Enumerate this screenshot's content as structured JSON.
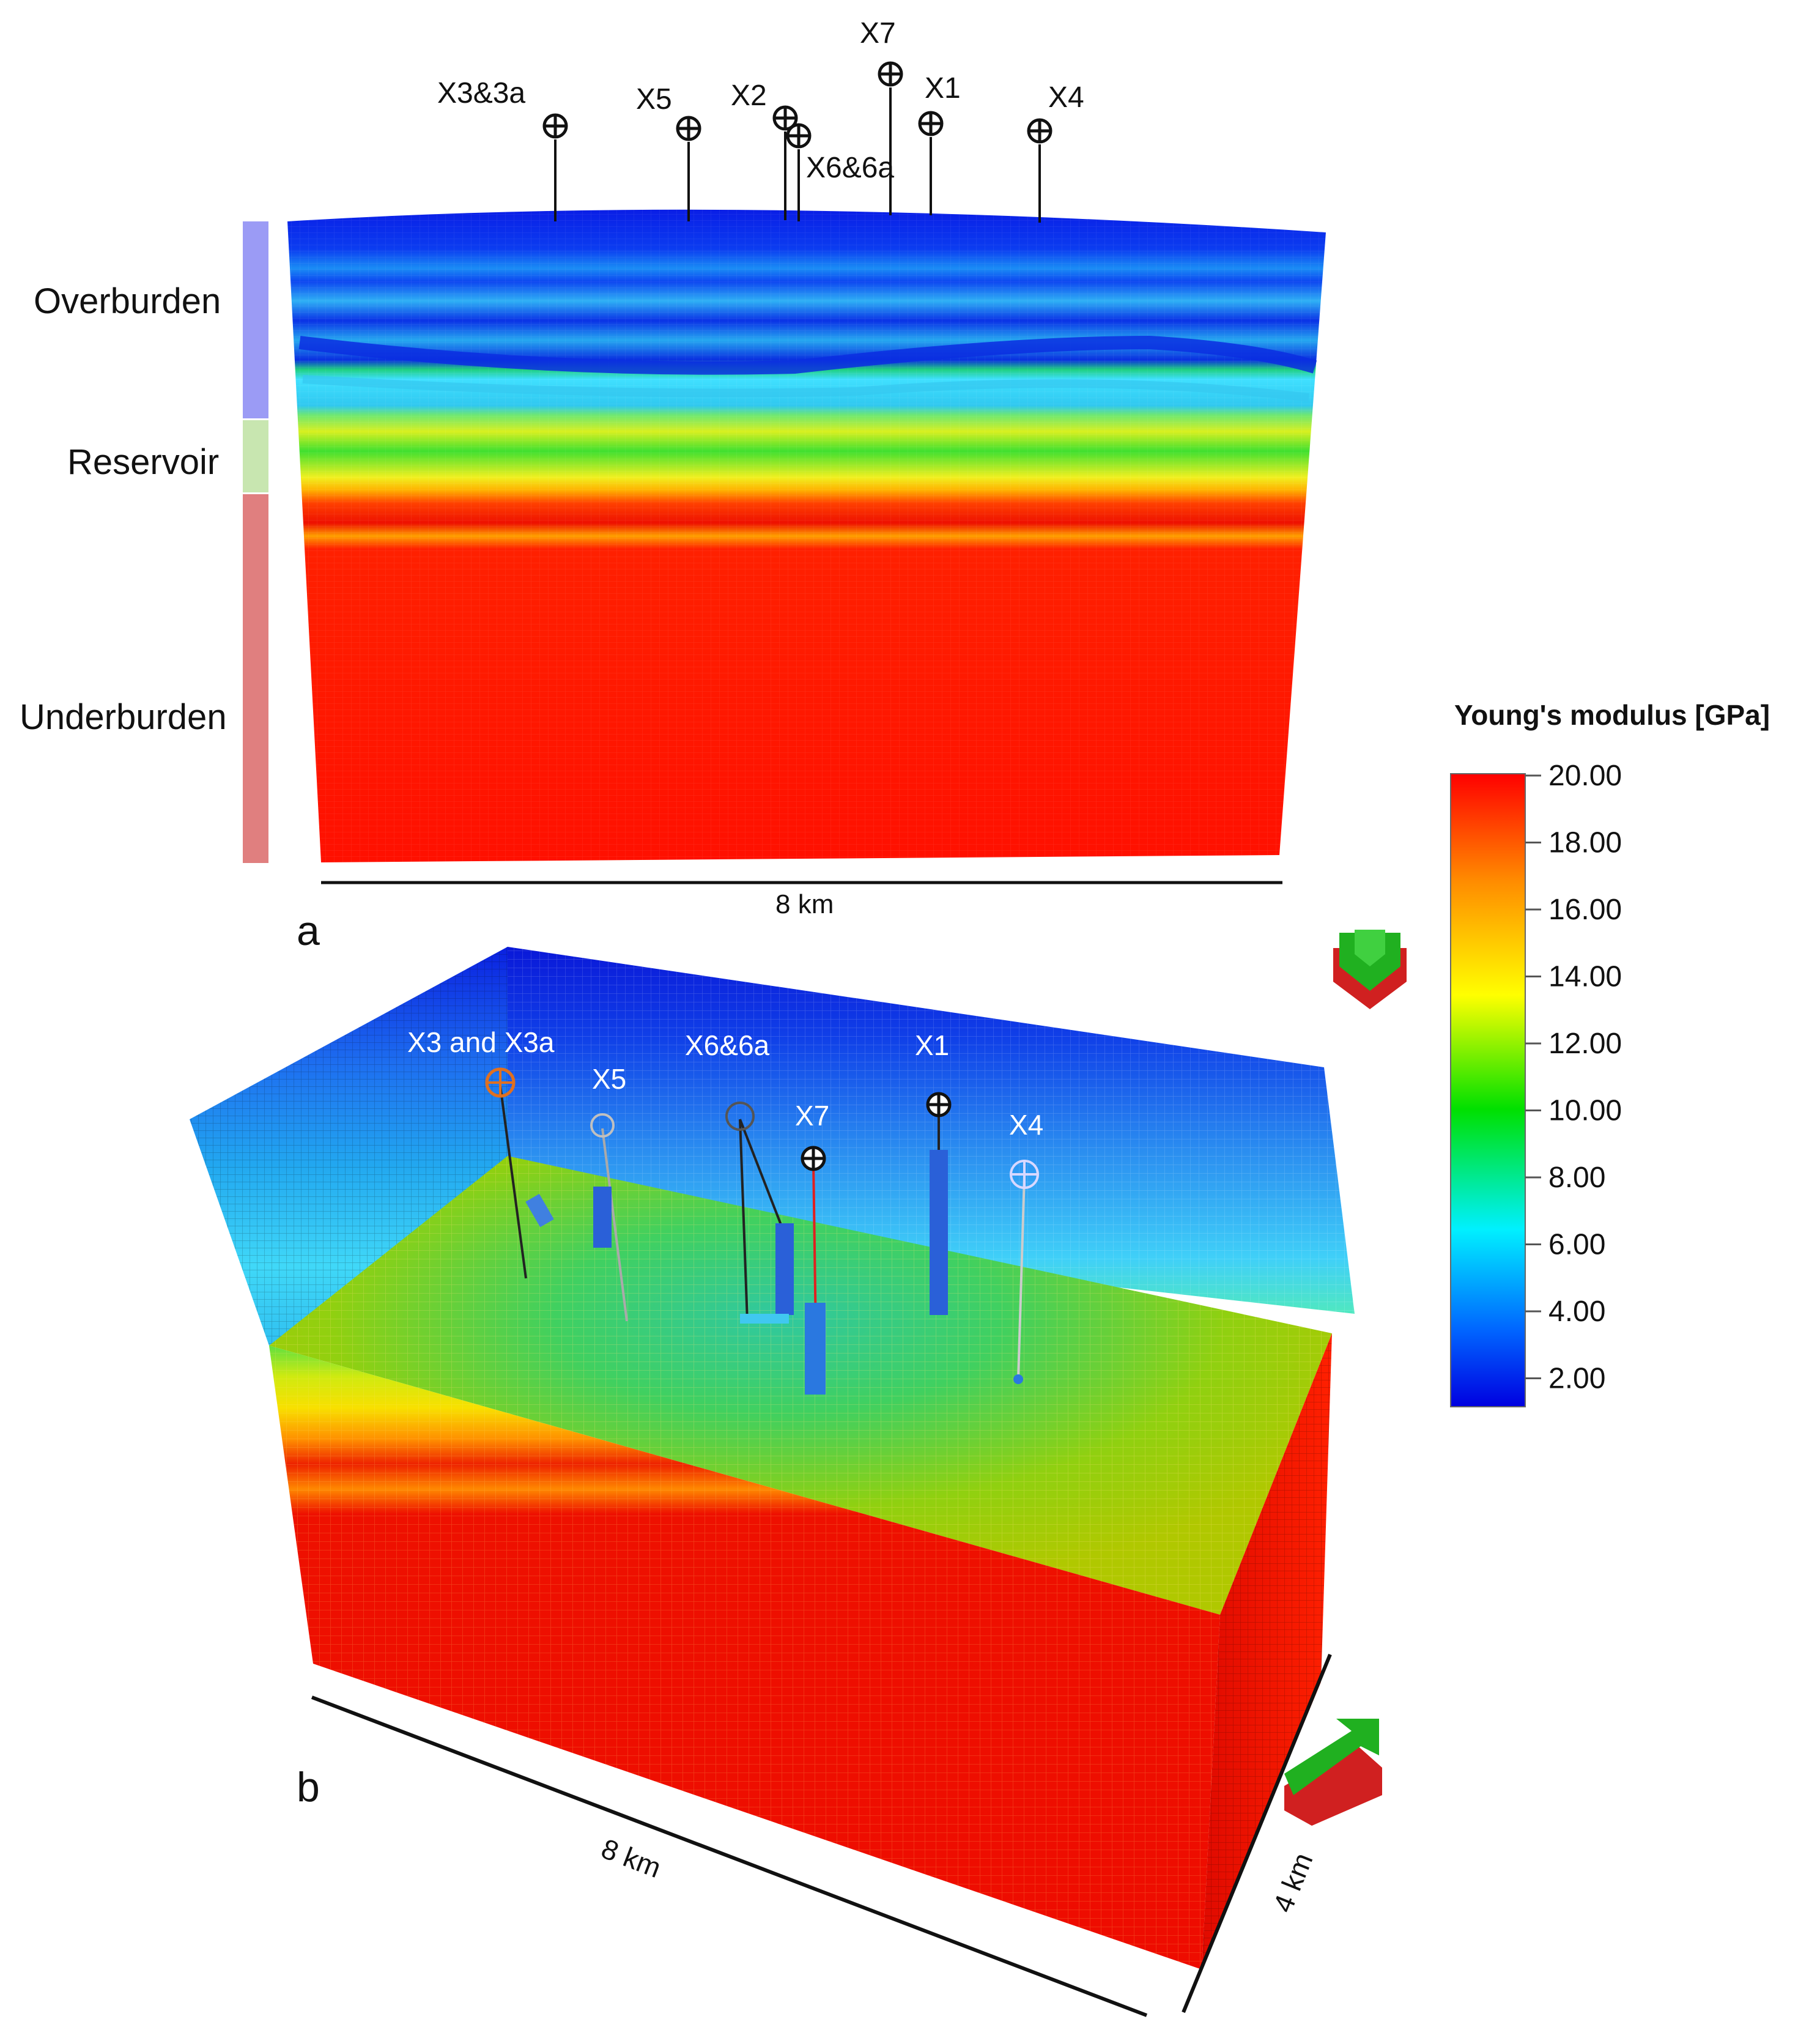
{
  "panel_a": {
    "label": "a",
    "zones": [
      "Overburden",
      "Reservoir",
      "Underburden"
    ],
    "wells": [
      {
        "name": "X3&3a",
        "depth": "medium"
      },
      {
        "name": "X5",
        "depth": "medium"
      },
      {
        "name": "X2",
        "depth": "long"
      },
      {
        "name": "X6&6a",
        "depth": "long"
      },
      {
        "name": "X7",
        "depth": "long"
      },
      {
        "name": "X1",
        "depth": "medium"
      },
      {
        "name": "X4",
        "depth": "medium"
      }
    ],
    "scale_label": "8 km"
  },
  "panel_b": {
    "label": "b",
    "wells": [
      "X3 and X3a",
      "X5",
      "X6&6a",
      "X7",
      "X1",
      "X4"
    ],
    "length_label": "8 km",
    "width_label": "4 km"
  },
  "colorbar": {
    "title": "Young's modulus [GPa]",
    "ticks": [
      "20.00",
      "18.00",
      "16.00",
      "14.00",
      "12.00",
      "10.00",
      "8.00",
      "6.00",
      "4.00",
      "2.00"
    ],
    "range": [
      1,
      20
    ],
    "colors": [
      "#ff0000",
      "#ff8c00",
      "#ffff00",
      "#00e000",
      "#00f0ff",
      "#0064ff",
      "#0000e0"
    ]
  },
  "zone_colors": {
    "overburden": "#9b9bf5",
    "reservoir": "#c8e6b0",
    "underburden": "#e07f7f"
  }
}
